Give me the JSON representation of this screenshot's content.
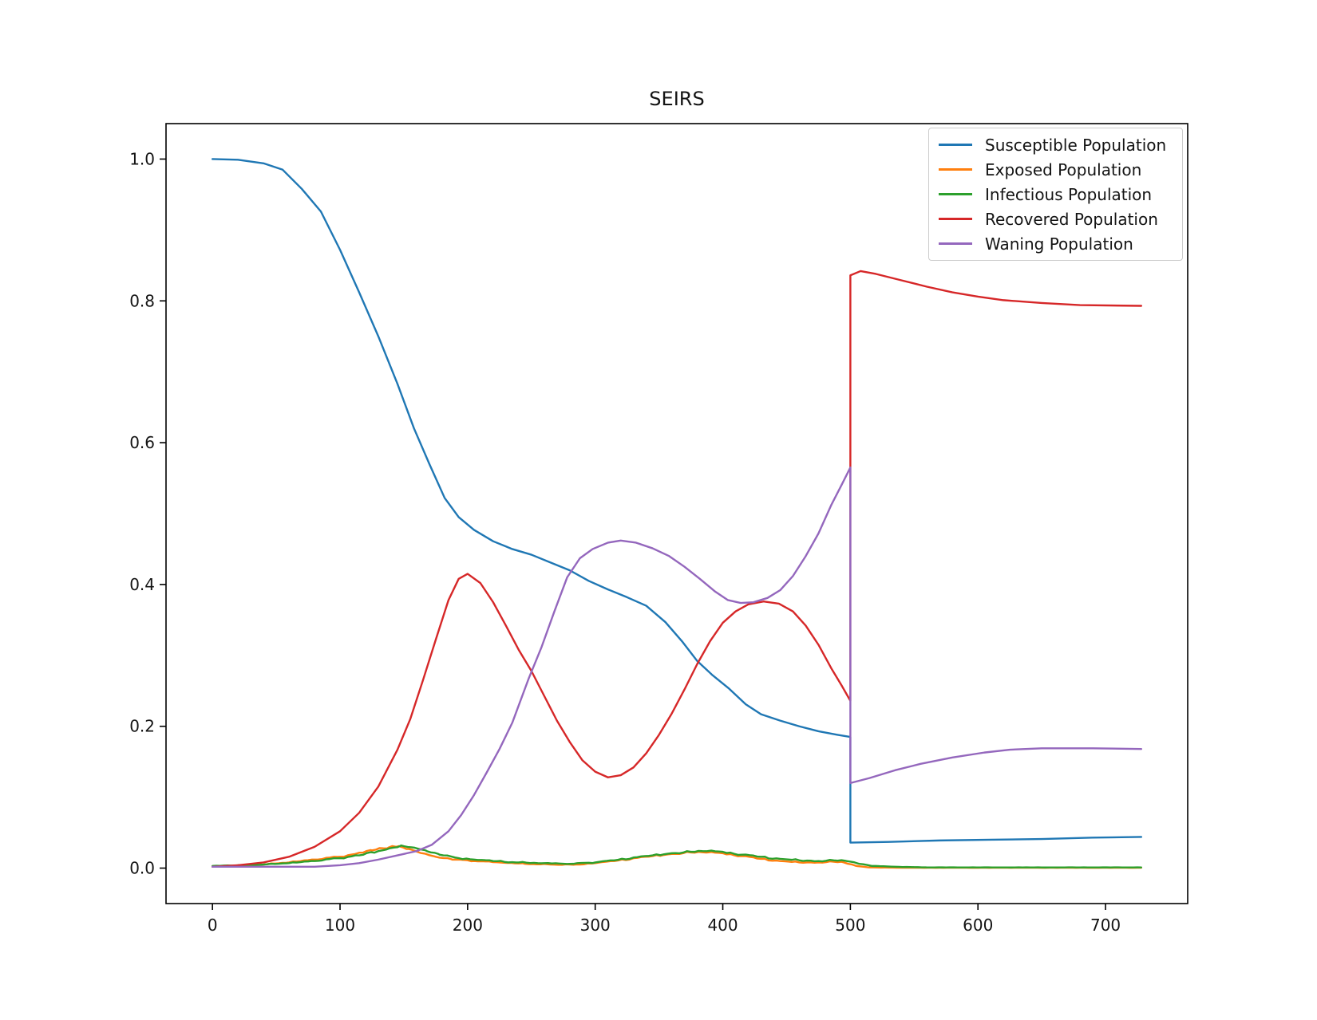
{
  "title": "SEIRS",
  "chart_data": {
    "type": "line",
    "title": "SEIRS",
    "xlabel": "",
    "ylabel": "",
    "grid": false,
    "legend_position": "upper right",
    "xlim": [
      -36.4,
      764.4
    ],
    "ylim": [
      -0.05,
      1.05
    ],
    "x_tick_values": [
      0,
      100,
      200,
      300,
      400,
      500,
      600,
      700
    ],
    "x_tick_labels": [
      "0",
      "100",
      "200",
      "300",
      "400",
      "500",
      "600",
      "700"
    ],
    "y_tick_values": [
      0.0,
      0.2,
      0.4,
      0.6,
      0.8,
      1.0
    ],
    "y_tick_labels": [
      "0.0",
      "0.2",
      "0.4",
      "0.6",
      "0.8",
      "1.0"
    ],
    "event_note_x": 500,
    "series": [
      {
        "name": "Susceptible Population",
        "color": "#1f77b4",
        "noisy": false,
        "points": [
          [
            0,
            1.0
          ],
          [
            20,
            0.999
          ],
          [
            40,
            0.994
          ],
          [
            55,
            0.985
          ],
          [
            70,
            0.958
          ],
          [
            85,
            0.926
          ],
          [
            100,
            0.872
          ],
          [
            115,
            0.812
          ],
          [
            130,
            0.75
          ],
          [
            145,
            0.683
          ],
          [
            158,
            0.62
          ],
          [
            170,
            0.57
          ],
          [
            182,
            0.522
          ],
          [
            193,
            0.495
          ],
          [
            205,
            0.477
          ],
          [
            220,
            0.461
          ],
          [
            235,
            0.45
          ],
          [
            250,
            0.442
          ],
          [
            265,
            0.431
          ],
          [
            280,
            0.42
          ],
          [
            295,
            0.405
          ],
          [
            310,
            0.393
          ],
          [
            325,
            0.382
          ],
          [
            340,
            0.37
          ],
          [
            355,
            0.347
          ],
          [
            368,
            0.32
          ],
          [
            380,
            0.292
          ],
          [
            392,
            0.272
          ],
          [
            405,
            0.253
          ],
          [
            418,
            0.231
          ],
          [
            430,
            0.217
          ],
          [
            445,
            0.208
          ],
          [
            460,
            0.2
          ],
          [
            475,
            0.193
          ],
          [
            490,
            0.188
          ],
          [
            500,
            0.185
          ],
          [
            500,
            0.036
          ],
          [
            530,
            0.037
          ],
          [
            570,
            0.039
          ],
          [
            610,
            0.04
          ],
          [
            650,
            0.041
          ],
          [
            690,
            0.043
          ],
          [
            728,
            0.044
          ]
        ]
      },
      {
        "name": "Exposed Population",
        "color": "#ff7f0e",
        "noisy": true,
        "points": [
          [
            0,
            0.002
          ],
          [
            20,
            0.003
          ],
          [
            40,
            0.005
          ],
          [
            60,
            0.008
          ],
          [
            80,
            0.012
          ],
          [
            100,
            0.016
          ],
          [
            112,
            0.02
          ],
          [
            125,
            0.025
          ],
          [
            138,
            0.029
          ],
          [
            146,
            0.031
          ],
          [
            154,
            0.027
          ],
          [
            164,
            0.021
          ],
          [
            175,
            0.016
          ],
          [
            188,
            0.012
          ],
          [
            205,
            0.01
          ],
          [
            225,
            0.008
          ],
          [
            245,
            0.006
          ],
          [
            265,
            0.005
          ],
          [
            285,
            0.005
          ],
          [
            300,
            0.007
          ],
          [
            315,
            0.01
          ],
          [
            330,
            0.014
          ],
          [
            345,
            0.017
          ],
          [
            360,
            0.02
          ],
          [
            375,
            0.022
          ],
          [
            388,
            0.022
          ],
          [
            400,
            0.021
          ],
          [
            415,
            0.017
          ],
          [
            430,
            0.013
          ],
          [
            445,
            0.01
          ],
          [
            460,
            0.008
          ],
          [
            475,
            0.008
          ],
          [
            487,
            0.009
          ],
          [
            495,
            0.008
          ],
          [
            505,
            0.003
          ],
          [
            515,
            0.001
          ],
          [
            540,
            0.0005
          ],
          [
            620,
            0.0005
          ],
          [
            728,
            0.0005
          ]
        ]
      },
      {
        "name": "Infectious Population",
        "color": "#2ca02c",
        "noisy": true,
        "points": [
          [
            0,
            0.003
          ],
          [
            20,
            0.004
          ],
          [
            40,
            0.005
          ],
          [
            60,
            0.007
          ],
          [
            80,
            0.01
          ],
          [
            100,
            0.014
          ],
          [
            115,
            0.018
          ],
          [
            130,
            0.024
          ],
          [
            142,
            0.029
          ],
          [
            150,
            0.031
          ],
          [
            158,
            0.029
          ],
          [
            168,
            0.024
          ],
          [
            178,
            0.019
          ],
          [
            190,
            0.015
          ],
          [
            205,
            0.012
          ],
          [
            220,
            0.01
          ],
          [
            240,
            0.008
          ],
          [
            260,
            0.007
          ],
          [
            280,
            0.006
          ],
          [
            300,
            0.008
          ],
          [
            315,
            0.011
          ],
          [
            330,
            0.015
          ],
          [
            345,
            0.018
          ],
          [
            360,
            0.021
          ],
          [
            375,
            0.023
          ],
          [
            388,
            0.024
          ],
          [
            400,
            0.023
          ],
          [
            415,
            0.019
          ],
          [
            430,
            0.016
          ],
          [
            445,
            0.013
          ],
          [
            460,
            0.011
          ],
          [
            475,
            0.01
          ],
          [
            487,
            0.011
          ],
          [
            497,
            0.01
          ],
          [
            507,
            0.006
          ],
          [
            517,
            0.003
          ],
          [
            535,
            0.002
          ],
          [
            560,
            0.001
          ],
          [
            620,
            0.001
          ],
          [
            728,
            0.001
          ]
        ]
      },
      {
        "name": "Recovered Population",
        "color": "#d62728",
        "noisy": false,
        "points": [
          [
            0,
            0.002
          ],
          [
            20,
            0.004
          ],
          [
            40,
            0.008
          ],
          [
            60,
            0.016
          ],
          [
            80,
            0.03
          ],
          [
            100,
            0.052
          ],
          [
            115,
            0.078
          ],
          [
            130,
            0.115
          ],
          [
            145,
            0.167
          ],
          [
            155,
            0.21
          ],
          [
            165,
            0.265
          ],
          [
            175,
            0.322
          ],
          [
            185,
            0.378
          ],
          [
            193,
            0.408
          ],
          [
            200,
            0.415
          ],
          [
            210,
            0.402
          ],
          [
            220,
            0.375
          ],
          [
            230,
            0.342
          ],
          [
            240,
            0.308
          ],
          [
            250,
            0.278
          ],
          [
            260,
            0.243
          ],
          [
            270,
            0.208
          ],
          [
            280,
            0.178
          ],
          [
            290,
            0.152
          ],
          [
            300,
            0.136
          ],
          [
            310,
            0.128
          ],
          [
            320,
            0.131
          ],
          [
            330,
            0.142
          ],
          [
            340,
            0.162
          ],
          [
            350,
            0.188
          ],
          [
            360,
            0.218
          ],
          [
            370,
            0.252
          ],
          [
            380,
            0.288
          ],
          [
            390,
            0.32
          ],
          [
            400,
            0.346
          ],
          [
            410,
            0.362
          ],
          [
            420,
            0.372
          ],
          [
            432,
            0.376
          ],
          [
            444,
            0.373
          ],
          [
            455,
            0.362
          ],
          [
            465,
            0.342
          ],
          [
            475,
            0.315
          ],
          [
            485,
            0.282
          ],
          [
            493,
            0.258
          ],
          [
            500,
            0.236
          ],
          [
            500,
            0.836
          ],
          [
            508,
            0.842
          ],
          [
            520,
            0.838
          ],
          [
            540,
            0.829
          ],
          [
            560,
            0.82
          ],
          [
            580,
            0.812
          ],
          [
            600,
            0.806
          ],
          [
            620,
            0.801
          ],
          [
            650,
            0.797
          ],
          [
            680,
            0.794
          ],
          [
            728,
            0.793
          ]
        ]
      },
      {
        "name": "Waning Population",
        "color": "#9467bd",
        "noisy": false,
        "points": [
          [
            0,
            0.002
          ],
          [
            40,
            0.002
          ],
          [
            80,
            0.002
          ],
          [
            100,
            0.004
          ],
          [
            115,
            0.007
          ],
          [
            130,
            0.012
          ],
          [
            145,
            0.018
          ],
          [
            160,
            0.024
          ],
          [
            172,
            0.033
          ],
          [
            185,
            0.052
          ],
          [
            195,
            0.075
          ],
          [
            205,
            0.103
          ],
          [
            215,
            0.135
          ],
          [
            225,
            0.168
          ],
          [
            235,
            0.205
          ],
          [
            248,
            0.268
          ],
          [
            258,
            0.312
          ],
          [
            268,
            0.362
          ],
          [
            278,
            0.41
          ],
          [
            288,
            0.437
          ],
          [
            298,
            0.45
          ],
          [
            310,
            0.459
          ],
          [
            320,
            0.462
          ],
          [
            332,
            0.459
          ],
          [
            345,
            0.451
          ],
          [
            358,
            0.44
          ],
          [
            370,
            0.425
          ],
          [
            382,
            0.408
          ],
          [
            394,
            0.39
          ],
          [
            404,
            0.378
          ],
          [
            414,
            0.374
          ],
          [
            424,
            0.375
          ],
          [
            435,
            0.381
          ],
          [
            445,
            0.392
          ],
          [
            455,
            0.412
          ],
          [
            465,
            0.44
          ],
          [
            475,
            0.472
          ],
          [
            485,
            0.512
          ],
          [
            493,
            0.54
          ],
          [
            500,
            0.565
          ],
          [
            500,
            0.12
          ],
          [
            515,
            0.127
          ],
          [
            535,
            0.138
          ],
          [
            555,
            0.147
          ],
          [
            580,
            0.156
          ],
          [
            605,
            0.163
          ],
          [
            625,
            0.167
          ],
          [
            650,
            0.169
          ],
          [
            690,
            0.169
          ],
          [
            728,
            0.168
          ]
        ]
      }
    ]
  }
}
